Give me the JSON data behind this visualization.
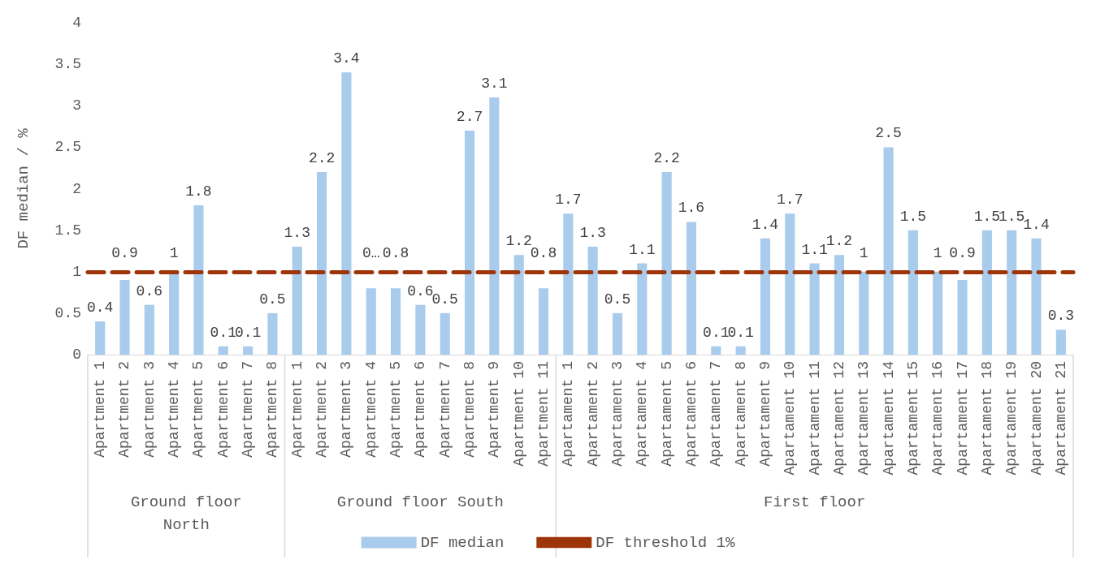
{
  "chart_data": {
    "type": "bar",
    "ylabel": "DF median / %",
    "categories": [
      "Apartment 1",
      "Apartment 2",
      "Apartment 3",
      "Apartment 4",
      "Apartment 5",
      "Apartment 6",
      "Apartment 7",
      "Apartment 8",
      "Apartment 1",
      "Apartment 2",
      "Apartment 3",
      "Apartment 4",
      "Apartment 5",
      "Apartment 6",
      "Apartment 7",
      "Apartment 8",
      "Apartment 9",
      "Apartment 10",
      "Apartment 11",
      "Apartament 1",
      "Apartament 2",
      "Apartament 3",
      "Apartament 4",
      "Apartament 5",
      "Apartament 6",
      "Apartament 7",
      "Apartament 8",
      "Apartament 9",
      "Apartament 10",
      "Apartament 11",
      "Apartament 12",
      "Apartament 13",
      "Apartament 14",
      "Apartament 15",
      "Apartament 16",
      "Apartament 17",
      "Apartament 18",
      "Apartament 19",
      "Apartament 20",
      "Apartament 21"
    ],
    "series": [
      {
        "name": "DF median",
        "color": "#a9cbec",
        "values": [
          0.4,
          0.9,
          0.6,
          1,
          1.8,
          0.1,
          0.1,
          0.5,
          1.3,
          2.2,
          3.4,
          0.8,
          0.8,
          0.6,
          0.5,
          2.7,
          3.1,
          1.2,
          0.8,
          1.7,
          1.3,
          0.5,
          1.1,
          2.2,
          1.6,
          0.1,
          0.1,
          1.4,
          1.7,
          1.1,
          1.2,
          1,
          2.5,
          1.5,
          1,
          0.9,
          1.5,
          1.5,
          1.4,
          0.3
        ],
        "value_labels": [
          "0.4",
          "0.9",
          "0.6",
          "1",
          "1.8",
          "0.1",
          "0.1",
          "0.5",
          "1.3",
          "2.2",
          "3.4",
          "0…",
          "0.8",
          "0.6",
          "0.5",
          "2.7",
          "3.1",
          "1.2",
          "0.8",
          "1.7",
          "1.3",
          "0.5",
          "1.1",
          "2.2",
          "1.6",
          "0.1",
          "0.1",
          "1.4",
          "1.7",
          "1.1",
          "1.2",
          "1",
          "2.5",
          "1.5",
          "1",
          "0.9",
          "1.5",
          "1.5",
          "1.4",
          "0.3"
        ]
      }
    ],
    "ref_lines": [
      {
        "axis": "y",
        "value": 1,
        "label": "DF threshold 1%",
        "color": "#9e3409",
        "line_style": "dashed"
      }
    ],
    "annotations": [
      "Ground floor\nNorth",
      "Ground floor South",
      "First floor"
    ],
    "ylim": [
      0,
      4
    ],
    "yticks": [
      0,
      0.5,
      1,
      1.5,
      2,
      2.5,
      3,
      3.5,
      4
    ],
    "grid": false,
    "legend": "bottom"
  }
}
